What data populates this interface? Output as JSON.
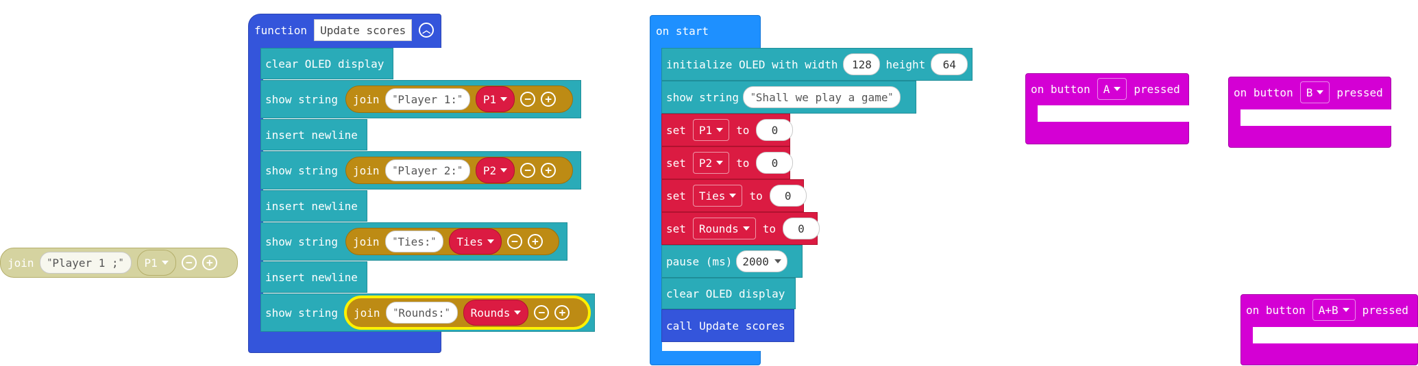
{
  "loose_join": {
    "label": "join",
    "string": "Player 1 ;",
    "variable": "P1"
  },
  "function_block": {
    "keyword": "function",
    "name": "Update scores",
    "statements": [
      {
        "type": "clear",
        "label": "clear OLED display"
      },
      {
        "type": "show",
        "label": "show string",
        "join": "join",
        "text": "Player 1:",
        "variable": "P1"
      },
      {
        "type": "newline",
        "label": "insert newline"
      },
      {
        "type": "show",
        "label": "show string",
        "join": "join",
        "text": "Player 2:",
        "variable": "P2"
      },
      {
        "type": "newline",
        "label": "insert newline"
      },
      {
        "type": "show",
        "label": "show string",
        "join": "join",
        "text": "Ties:",
        "variable": "Ties"
      },
      {
        "type": "newline",
        "label": "insert newline"
      },
      {
        "type": "show",
        "label": "show string",
        "join": "join",
        "text": "Rounds:",
        "variable": "Rounds"
      }
    ]
  },
  "on_start": {
    "label": "on start",
    "init": {
      "label": "initialize OLED with width",
      "width": "128",
      "height_label": "height",
      "height": "64"
    },
    "show": {
      "label": "show string",
      "text": "Shall we play a game"
    },
    "sets": [
      {
        "set": "set",
        "variable": "P1",
        "to": "to",
        "value": "0"
      },
      {
        "set": "set",
        "variable": "P2",
        "to": "to",
        "value": "0"
      },
      {
        "set": "set",
        "variable": "Ties",
        "to": "to",
        "value": "0"
      },
      {
        "set": "set",
        "variable": "Rounds",
        "to": "to",
        "value": "0"
      }
    ],
    "pause": {
      "label": "pause (ms)",
      "value": "2000"
    },
    "clear": {
      "label": "clear OLED display"
    },
    "call": {
      "label": "call Update scores"
    }
  },
  "buttons": [
    {
      "prefix": "on button",
      "button": "A",
      "suffix": "pressed"
    },
    {
      "prefix": "on button",
      "button": "B",
      "suffix": "pressed"
    },
    {
      "prefix": "on button",
      "button": "A+B",
      "suffix": "pressed"
    }
  ],
  "colors": {
    "teal": "#2aabb8",
    "red": "#db1b42",
    "blue": "#3455db",
    "sky": "#1e90ff",
    "magenta": "#d400d4",
    "join": "#bd8b14",
    "selection": "#fff200"
  }
}
